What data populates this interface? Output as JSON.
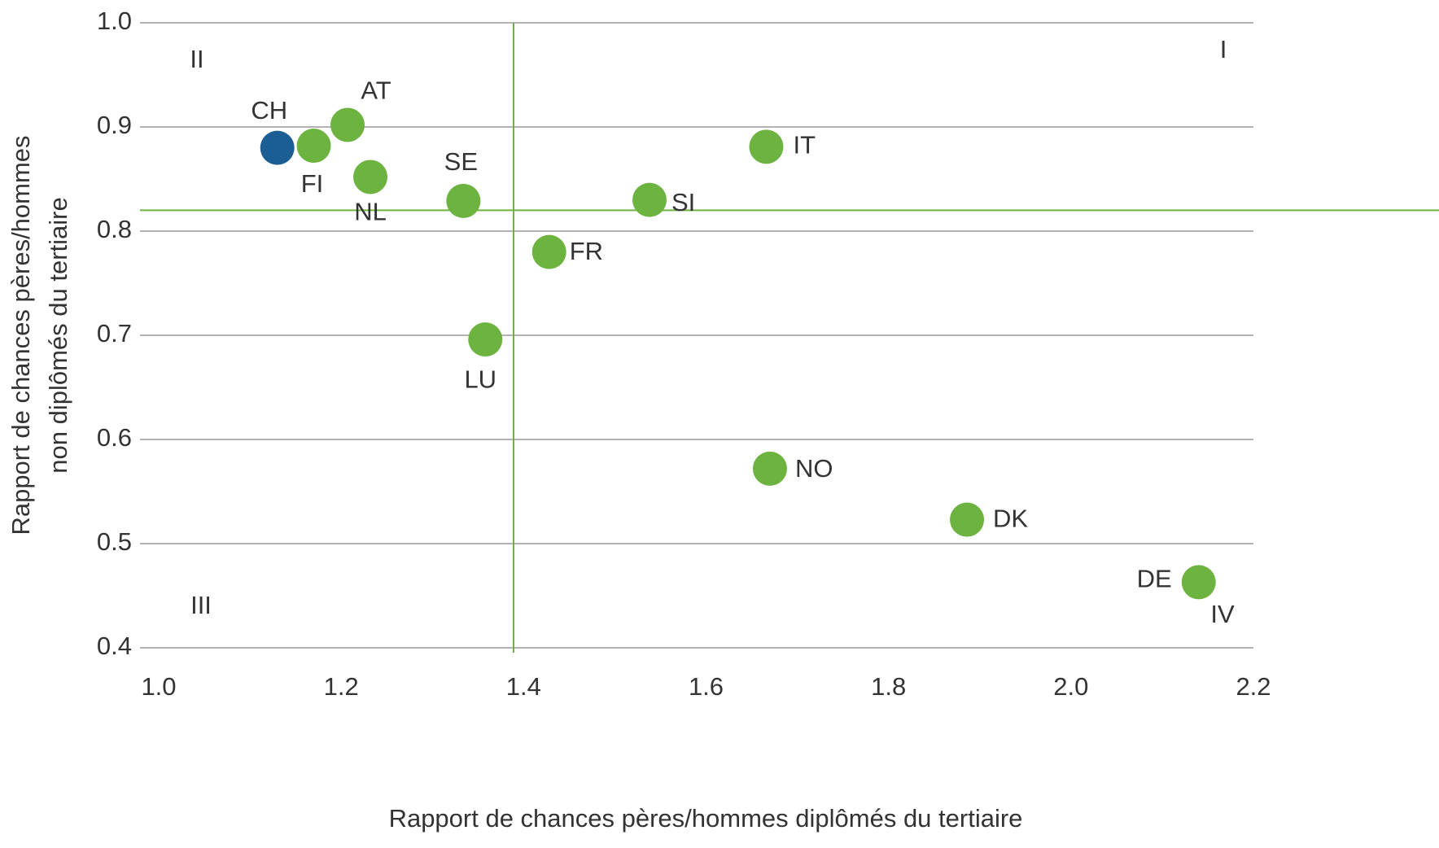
{
  "chart_data": {
    "type": "scatter",
    "xlabel": "Rapport de chances pères/hommes diplômés du tertiaire",
    "ylabel": [
      "Rapport de chances pères/hommes",
      "non diplômés du tertiaire"
    ],
    "xlim": [
      1.0,
      2.2
    ],
    "ylim": [
      0.4,
      1.0
    ],
    "xticks": [
      {
        "value": 1.0,
        "label": "1.0"
      },
      1.2,
      1.4,
      1.6,
      1.8,
      {
        "value": 2.0,
        "label": "2.0"
      },
      2.2
    ],
    "yticks": [
      0.4,
      0.5,
      0.6,
      0.7,
      0.8,
      0.9,
      {
        "value": 1.0,
        "label": "1.0"
      }
    ],
    "grid": true,
    "reference_lines": {
      "x": 1.389,
      "y": 0.82,
      "color": "#6db33f"
    },
    "annotations": [
      "II",
      "I",
      "III",
      "IV"
    ],
    "series": [
      {
        "labels": [
          "CH",
          "FI",
          "AT",
          "NL",
          "SE",
          "SI",
          "IT",
          "FR",
          "LU",
          "NO",
          "DK",
          "DE"
        ],
        "x": [
          1.13,
          1.17,
          1.207,
          1.232,
          1.334,
          1.538,
          1.666,
          1.428,
          1.358,
          1.67,
          1.886,
          2.14
        ],
        "values": [
          0.88,
          0.882,
          0.902,
          0.852,
          0.829,
          0.83,
          0.881,
          0.78,
          0.696,
          0.572,
          0.523,
          0.463
        ],
        "colors": [
          "#1a5e94",
          "#6db33f",
          "#6db33f",
          "#6db33f",
          "#6db33f",
          "#6db33f",
          "#6db33f",
          "#6db33f",
          "#6db33f",
          "#6db33f",
          "#6db33f",
          "#6db33f"
        ]
      }
    ]
  }
}
